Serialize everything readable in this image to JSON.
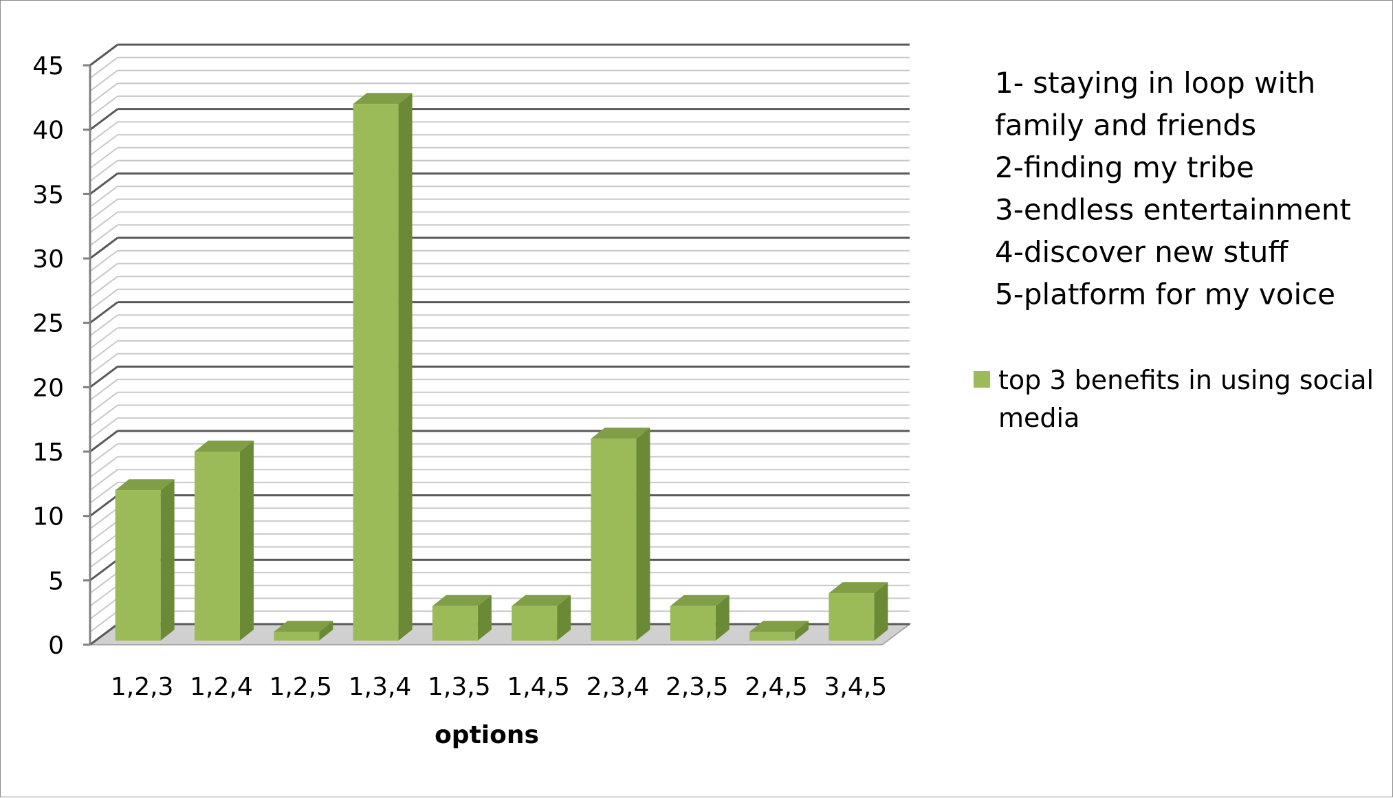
{
  "chart_data": {
    "type": "bar",
    "title": "",
    "xlabel": "options",
    "ylabel": "",
    "ylim": [
      0,
      45
    ],
    "yticks": [
      0,
      5,
      10,
      15,
      20,
      25,
      30,
      35,
      40,
      45
    ],
    "categories": [
      "1,2,3",
      "1,2,4",
      "1,2,5",
      "1,3,4",
      "1,3,5",
      "1,4,5",
      "2,3,4",
      "2,3,5",
      "2,4,5",
      "3,4,5"
    ],
    "series": [
      {
        "name": "top 3 benefits in using social media",
        "name_lines": [
          "top 3 benefits in using social",
          "media"
        ],
        "values": [
          12,
          15,
          1,
          42,
          3,
          3,
          16,
          3,
          1,
          4
        ]
      }
    ],
    "legend_position": "right",
    "grid": true,
    "colors": {
      "bar_front": "#9bbb59",
      "bar_side": "#6a8a36",
      "bar_top": "#7f9e45",
      "gridline_major": "#595959",
      "gridline_minor": "#c8c8c8",
      "floor": "#d0d0d0"
    },
    "annotations": [
      "1- staying in loop with",
      "family and friends",
      "2-finding my tribe",
      "3-endless entertainment",
      "4-discover new stuff",
      "5-platform for my voice"
    ]
  }
}
